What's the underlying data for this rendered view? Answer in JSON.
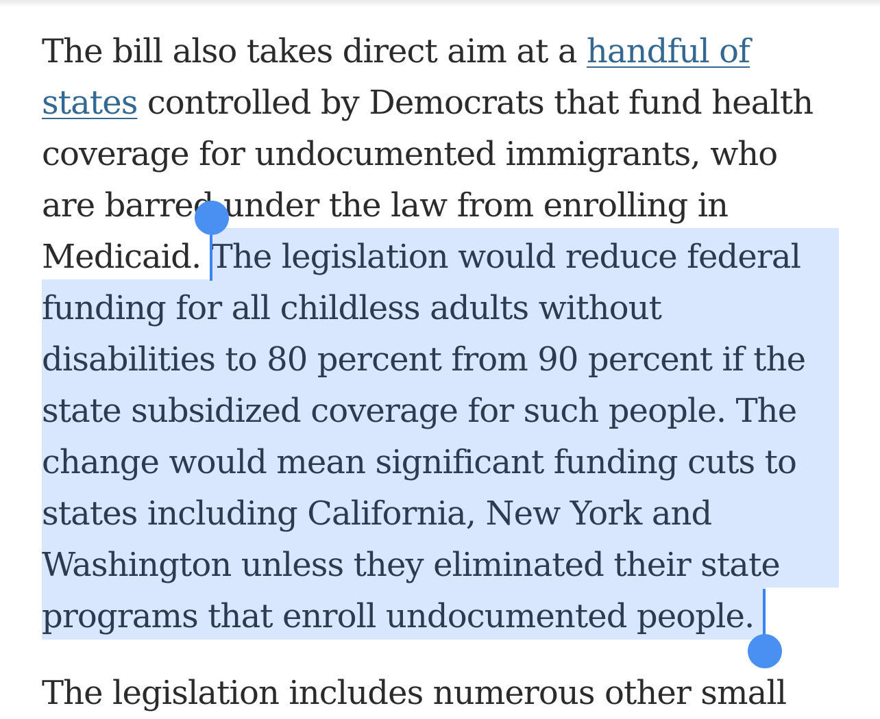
{
  "article": {
    "paragraph1": {
      "lines": [
        {
          "before": "The bill also takes direct aim at a ",
          "link": "handful of",
          "after": ""
        },
        {
          "before": "",
          "link": "states",
          "after": " controlled by Democrats that fund health"
        },
        {
          "before": "coverage for undocumented immigrants, who",
          "link": "",
          "after": ""
        },
        {
          "before": "are barred under the law from enrolling in",
          "link": "",
          "after": ""
        },
        {
          "before": "Medicaid. ",
          "selected": "The legislation would reduce federal"
        },
        {
          "selected": "funding for all childless adults without"
        },
        {
          "selected": "disabilities to 80 percent from 90 percent if the"
        },
        {
          "selected": "state subsidized coverage for such people. The"
        },
        {
          "selected": "change would mean significant funding cuts to"
        },
        {
          "selected": "states including California, New York and"
        },
        {
          "selected": "Washington unless they eliminated their state"
        },
        {
          "selected": "programs that enroll undocumented people."
        }
      ]
    },
    "paragraph2_partial": "The legislation includes numerous other small"
  },
  "colors": {
    "text": "#2b2b2b",
    "link": "#326891",
    "selection_highlight": "#d8e7fd",
    "selection_handle": "#4a90f2"
  }
}
